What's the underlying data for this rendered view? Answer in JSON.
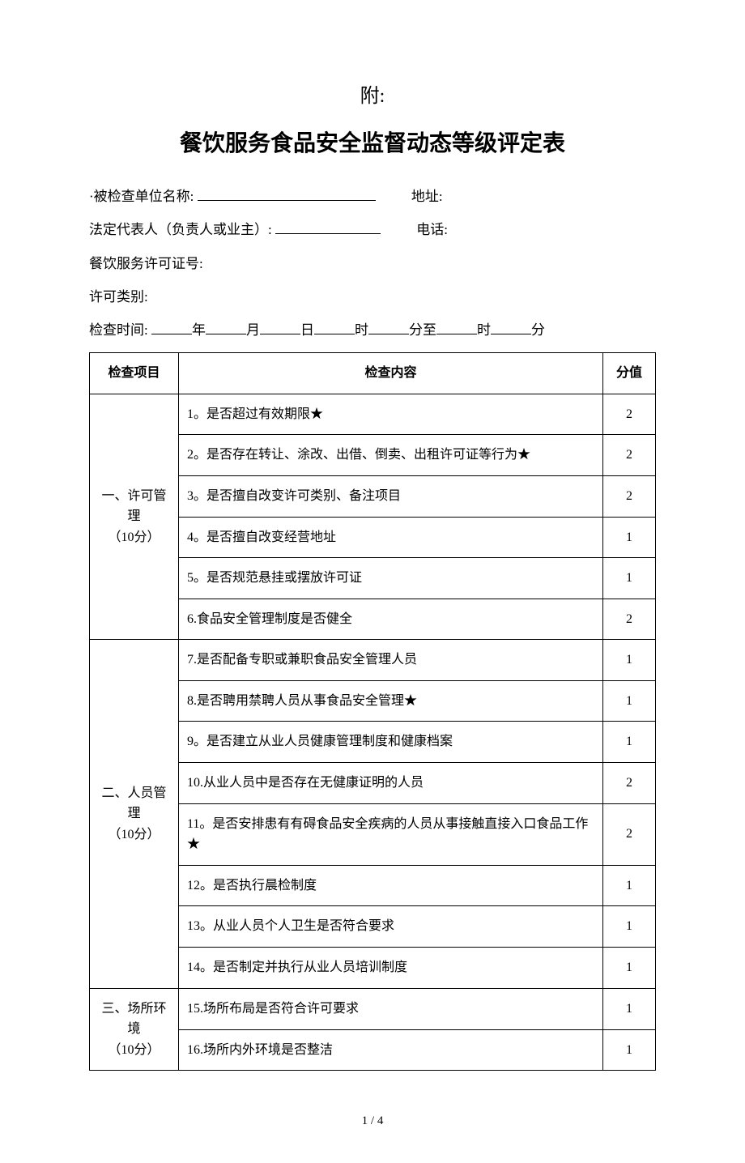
{
  "attachment_label": "附:",
  "main_title": "餐饮服务食品安全监督动态等级评定表",
  "form_lines": {
    "unit_prefix": "·被检查单位名称:",
    "address_label": "地址:",
    "legal_rep_label": "法定代表人（负责人或业主）:",
    "phone_label": "电话:",
    "license_no_label": "餐饮服务许可证号:",
    "license_category_label": "许可类别:",
    "check_time_label": "检查时间:",
    "year": "年",
    "month": "月",
    "day": "日",
    "hour": "时",
    "minute": "分",
    "to": "至"
  },
  "table": {
    "headers": {
      "category": "检查项目",
      "content": "检查内容",
      "score": "分值"
    },
    "sections": [
      {
        "category": "一、许可管理\n（10分）",
        "rows": [
          {
            "content": "1。是否超过有效期限★",
            "score": "2"
          },
          {
            "content": "2。是否存在转让、涂改、出借、倒卖、出租许可证等行为★",
            "score": "2"
          },
          {
            "content": "3。是否擅自改变许可类别、备注项目",
            "score": "2"
          },
          {
            "content": "4。是否擅自改变经营地址",
            "score": "1"
          },
          {
            "content": "5。是否规范悬挂或摆放许可证",
            "score": "1"
          },
          {
            "content": "6.食品安全管理制度是否健全",
            "score": "2"
          }
        ]
      },
      {
        "category": "二、人员管理\n（10分）",
        "rows": [
          {
            "content": "7.是否配备专职或兼职食品安全管理人员",
            "score": "1"
          },
          {
            "content": "8.是否聘用禁聘人员从事食品安全管理★",
            "score": "1"
          },
          {
            "content": "9。是否建立从业人员健康管理制度和健康档案",
            "score": "1"
          },
          {
            "content": "10.从业人员中是否存在无健康证明的人员",
            "score": "2"
          },
          {
            "content": "11。是否安排患有有碍食品安全疾病的人员从事接触直接入口食品工作★",
            "score": "2"
          },
          {
            "content": "12。是否执行晨检制度",
            "score": "1"
          },
          {
            "content": "13。从业人员个人卫生是否符合要求",
            "score": "1"
          },
          {
            "content": "14。是否制定并执行从业人员培训制度",
            "score": "1"
          }
        ]
      },
      {
        "category": "三、场所环境\n（10分）",
        "rows": [
          {
            "content": "15.场所布局是否符合许可要求",
            "score": "1"
          },
          {
            "content": "16.场所内外环境是否整洁",
            "score": "1"
          }
        ]
      }
    ]
  },
  "page_footer": "1 / 4"
}
